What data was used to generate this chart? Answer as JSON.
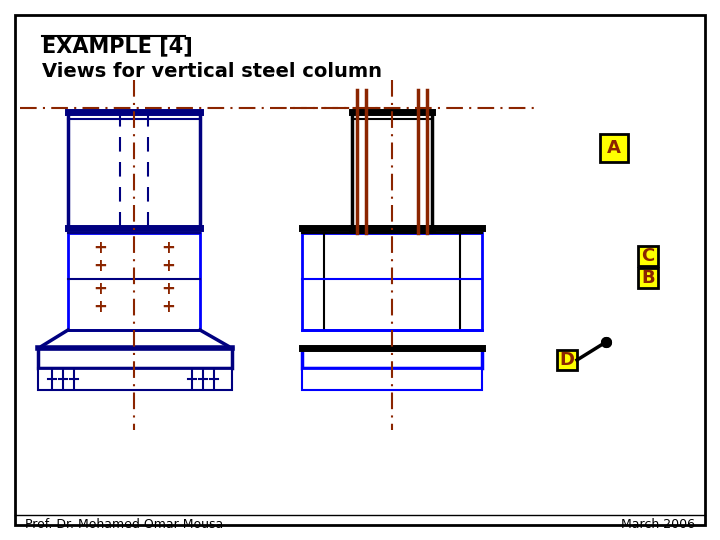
{
  "title": "EXAMPLE [4]",
  "subtitle": "Views for vertical steel column",
  "footer_left": "Prof. Dr. Mohamed Omar Mousa",
  "footer_right": "March 2006",
  "blue_dark": "#000080",
  "blue_bright": "#0000ff",
  "brown_red": "#8B2500",
  "yellow_label": "#ffff00",
  "black": "#000000",
  "label_A": "A",
  "label_B": "B",
  "label_C": "C",
  "label_D": "D"
}
